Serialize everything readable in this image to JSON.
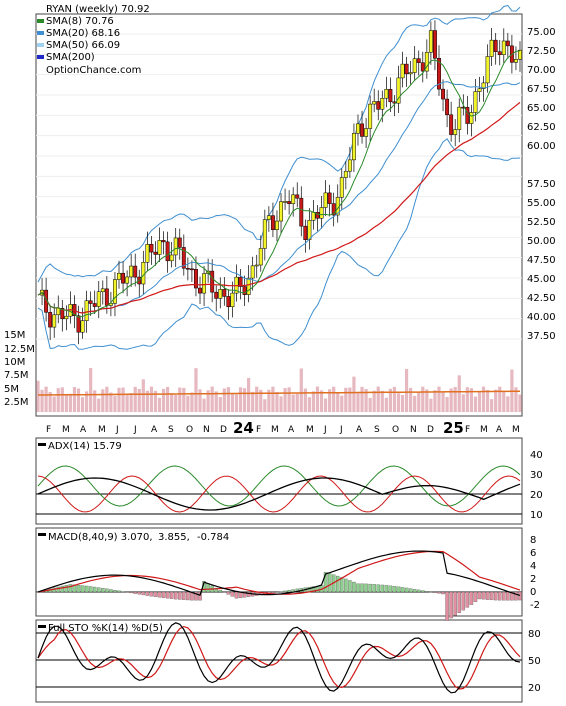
{
  "colors": {
    "sma8": "#2a8a2a",
    "sma20": "#3f8fd0",
    "sma50": "#9fd2f0",
    "sma200": "#1f2ac8",
    "bollinger": "#3f8fd0",
    "red_line": "#d01818",
    "candle_up": "#f3f32a",
    "candle_down": "#c81818",
    "volume_bar": "#e6b8c0",
    "volume_avg": "#e07020",
    "macd_val": "#d01818",
    "macd_div": "#3f6fb0",
    "hist_pos": "#8fcf8f",
    "hist_neg": "#e090a0"
  },
  "price_panel": {
    "legend": [
      {
        "text": "RYAN (weekly) 70.92",
        "swatch": "none"
      },
      {
        "text": "SMA(8) 70.76",
        "swatch": "sma8"
      },
      {
        "text": "SMA(20) 68.16",
        "swatch": "sma20"
      },
      {
        "text": "SMA(50) 66.09",
        "swatch": "sma50"
      },
      {
        "text": "SMA(200)",
        "swatch": "sma200"
      },
      {
        "text": "OptionChance.com",
        "swatch": "none"
      }
    ],
    "y_ticks": [
      "75.00",
      "72.50",
      "70.00",
      "67.50",
      "65.00",
      "62.50",
      "60.00",
      "57.50",
      "55.00",
      "52.50",
      "50.00",
      "47.50",
      "45.00",
      "42.50",
      "40.00",
      "37.50"
    ]
  },
  "volume_panel": {
    "y_ticks": [
      "15M",
      "12.5M",
      "10M",
      "7.5M",
      "5M",
      "2.5M"
    ]
  },
  "x_axis": {
    "labels": [
      "F",
      "M",
      "A",
      "M",
      "J",
      "J",
      "A",
      "S",
      "O",
      "N",
      "D",
      "24",
      "F",
      "M",
      "A",
      "M",
      "J",
      "J",
      "A",
      "S",
      "O",
      "N",
      "D",
      "25",
      "F",
      "M",
      "A",
      "M"
    ]
  },
  "adx_panel": {
    "legend": "ADX(14) 15.79",
    "y_ticks": [
      "40",
      "30",
      "20",
      "10"
    ]
  },
  "macd_panel": {
    "legend_label": "MACD(8,40,9) 3.070,",
    "legend_val1": "3.855,",
    "legend_val2": "-0.784",
    "y_ticks": [
      "8",
      "6",
      "4",
      "2",
      "0",
      "-2"
    ]
  },
  "sto_panel": {
    "legend": "Full STO %K(14) %D(5)",
    "y_ticks": [
      "80",
      "50",
      "20"
    ]
  },
  "chart_data": {
    "type": "line",
    "title": "RYAN (weekly) 70.92",
    "ylim": [
      35.0,
      77.5
    ],
    "x": [
      "F",
      "M",
      "A",
      "M",
      "J",
      "J",
      "A",
      "S",
      "O",
      "N",
      "D",
      "24",
      "F",
      "M",
      "A",
      "M",
      "J",
      "J",
      "A",
      "S",
      "O",
      "N",
      "D",
      "25",
      "F",
      "M",
      "A",
      "M"
    ],
    "series": [
      {
        "name": "RYAN (weekly) 70.92",
        "values": [
          42.0,
          40.5,
          40.0,
          41.5,
          43.5,
          45.0,
          47.0,
          49.5,
          47.5,
          44.5,
          43.5,
          42.5,
          46.0,
          52.0,
          55.0,
          51.5,
          53.5,
          56.0,
          64.0,
          66.0,
          68.5,
          71.0,
          73.5,
          64.0,
          64.5,
          70.5,
          74.5,
          70.92
        ]
      },
      {
        "name": "SMA(8) 70.76",
        "values": [
          41.5,
          40.8,
          40.3,
          41.2,
          42.8,
          44.6,
          46.5,
          48.8,
          48.0,
          45.5,
          44.0,
          43.0,
          45.0,
          50.5,
          54.0,
          52.5,
          53.0,
          55.0,
          62.0,
          64.5,
          67.5,
          70.0,
          72.5,
          66.0,
          64.0,
          68.0,
          72.5,
          70.76
        ]
      },
      {
        "name": "SMA(20) 68.16",
        "values": [
          41.0,
          40.5,
          40.3,
          40.8,
          41.8,
          43.2,
          44.8,
          46.8,
          47.5,
          46.5,
          45.0,
          44.0,
          44.5,
          47.5,
          51.0,
          52.5,
          53.0,
          54.0,
          58.0,
          62.0,
          65.0,
          67.5,
          69.5,
          68.0,
          66.0,
          66.5,
          68.5,
          68.16
        ]
      },
      {
        "name": "SMA(50) 66.09",
        "values": [
          40.3,
          40.4,
          40.5,
          40.8,
          41.2,
          41.8,
          42.6,
          43.5,
          44.2,
          44.4,
          44.4,
          44.2,
          44.6,
          45.8,
          47.5,
          49.0,
          50.3,
          51.6,
          54.0,
          56.5,
          58.8,
          61.0,
          63.0,
          63.8,
          64.3,
          65.0,
          65.7,
          66.09
        ]
      }
    ]
  }
}
